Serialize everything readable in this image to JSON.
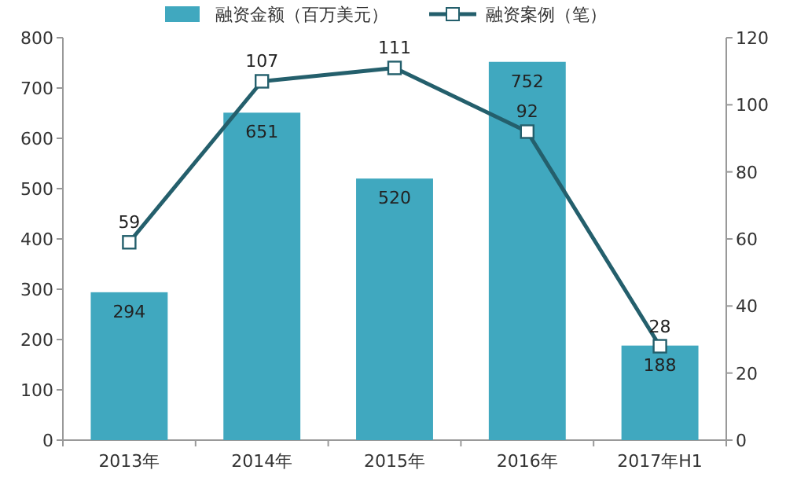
{
  "chart_data": {
    "type": "bar",
    "categories": [
      "2013年",
      "2014年",
      "2015年",
      "2016年",
      "2017年H1"
    ],
    "series": [
      {
        "name": "融资金额（百万美元）",
        "color": "#40a8bf",
        "values": [
          294,
          651,
          520,
          752,
          188
        ]
      },
      {
        "name": "融资案例（笔）",
        "color": "#245f6c",
        "type": "line",
        "axis": "y2",
        "marker": "square",
        "values": [
          59,
          107,
          111,
          92,
          28
        ]
      }
    ],
    "ylim": [
      0,
      800
    ],
    "yticks": [
      0,
      100,
      200,
      300,
      400,
      500,
      600,
      700,
      800
    ],
    "y2lim": [
      0,
      120
    ],
    "y2ticks": [
      0,
      20,
      40,
      60,
      80,
      100,
      120
    ],
    "data_labels": true,
    "legend": "top"
  }
}
